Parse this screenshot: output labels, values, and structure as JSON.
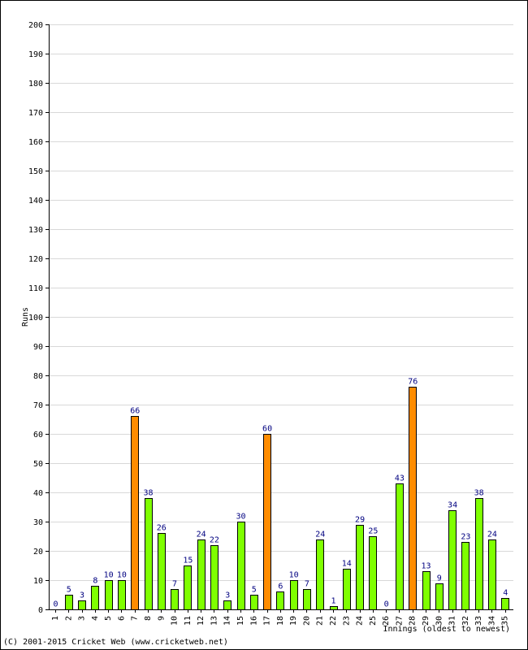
{
  "chart_data": {
    "type": "bar",
    "xlabel": "Innings (oldest to newest)",
    "ylabel": "Runs",
    "ylim": [
      0,
      200
    ],
    "ytick_step": 10,
    "grid": true,
    "categories": [
      "1",
      "2",
      "3",
      "4",
      "5",
      "6",
      "7",
      "8",
      "9",
      "10",
      "11",
      "12",
      "13",
      "14",
      "15",
      "16",
      "17",
      "18",
      "19",
      "20",
      "21",
      "22",
      "23",
      "24",
      "25",
      "26",
      "27",
      "28",
      "29",
      "30",
      "31",
      "32",
      "33",
      "34",
      "35"
    ],
    "values": [
      0,
      5,
      3,
      8,
      10,
      10,
      66,
      38,
      26,
      7,
      15,
      24,
      22,
      3,
      30,
      5,
      60,
      6,
      10,
      7,
      24,
      1,
      14,
      29,
      25,
      0,
      43,
      76,
      13,
      9,
      34,
      23,
      38,
      24,
      4
    ],
    "highlight_threshold": 50,
    "colors": {
      "bar": "#7FFF00",
      "highlight": "#FF8C00",
      "bar_border": "#000000",
      "value_label": "#000080",
      "grid": "#d8d8d8"
    }
  },
  "footer": {
    "copyright": "(C) 2001-2015 Cricket Web (www.cricketweb.net)"
  }
}
